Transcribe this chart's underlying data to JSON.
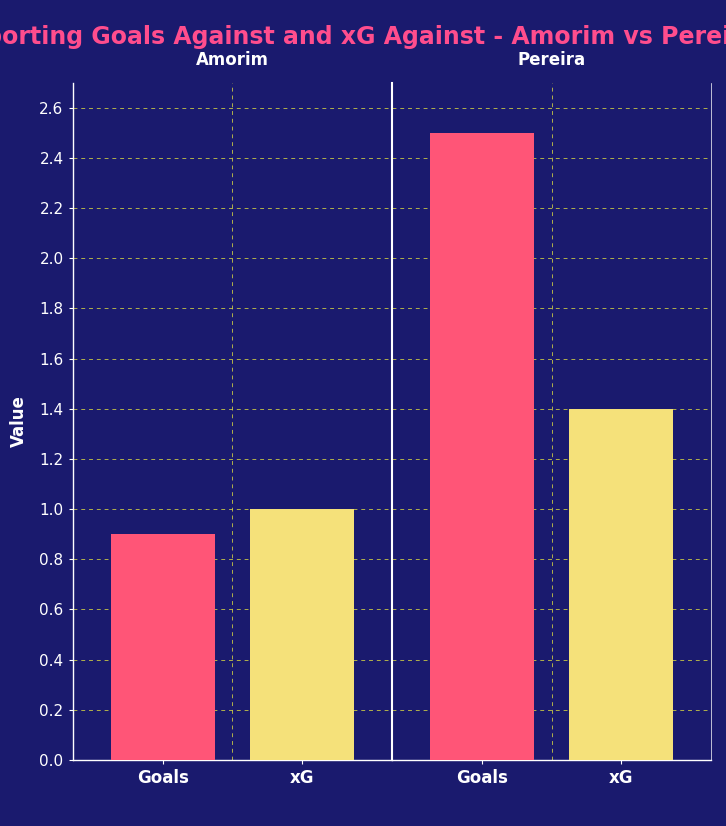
{
  "title": "Sporting Goals Against and xG Against - Amorim vs Pereira",
  "background_color": "#1a1a6e",
  "title_color": "#ff4d8d",
  "title_fontsize": 17,
  "groups": [
    "Amorim",
    "Pereira"
  ],
  "categories": [
    "Goals",
    "xG"
  ],
  "values": {
    "Amorim": {
      "Goals": 0.9,
      "xG": 1.0
    },
    "Pereira": {
      "Goals": 2.5,
      "xG": 1.4
    }
  },
  "bar_colors": {
    "Goals": "#ff5577",
    "xG": "#f5e17a"
  },
  "ylabel": "Value",
  "ylim": [
    0,
    2.7
  ],
  "yticks": [
    0.0,
    0.2,
    0.4,
    0.6,
    0.8,
    1.0,
    1.2,
    1.4,
    1.6,
    1.8,
    2.0,
    2.2,
    2.4,
    2.6
  ],
  "grid_color": "#cccc44",
  "axis_color": "white",
  "tick_color": "white",
  "label_color": "white",
  "group_label_color": "white",
  "group_label_fontsize": 12,
  "tick_fontsize": 11,
  "ylabel_fontsize": 12,
  "xlabel_fontsize": 12,
  "bar_width": 0.75,
  "separator_color": "white"
}
